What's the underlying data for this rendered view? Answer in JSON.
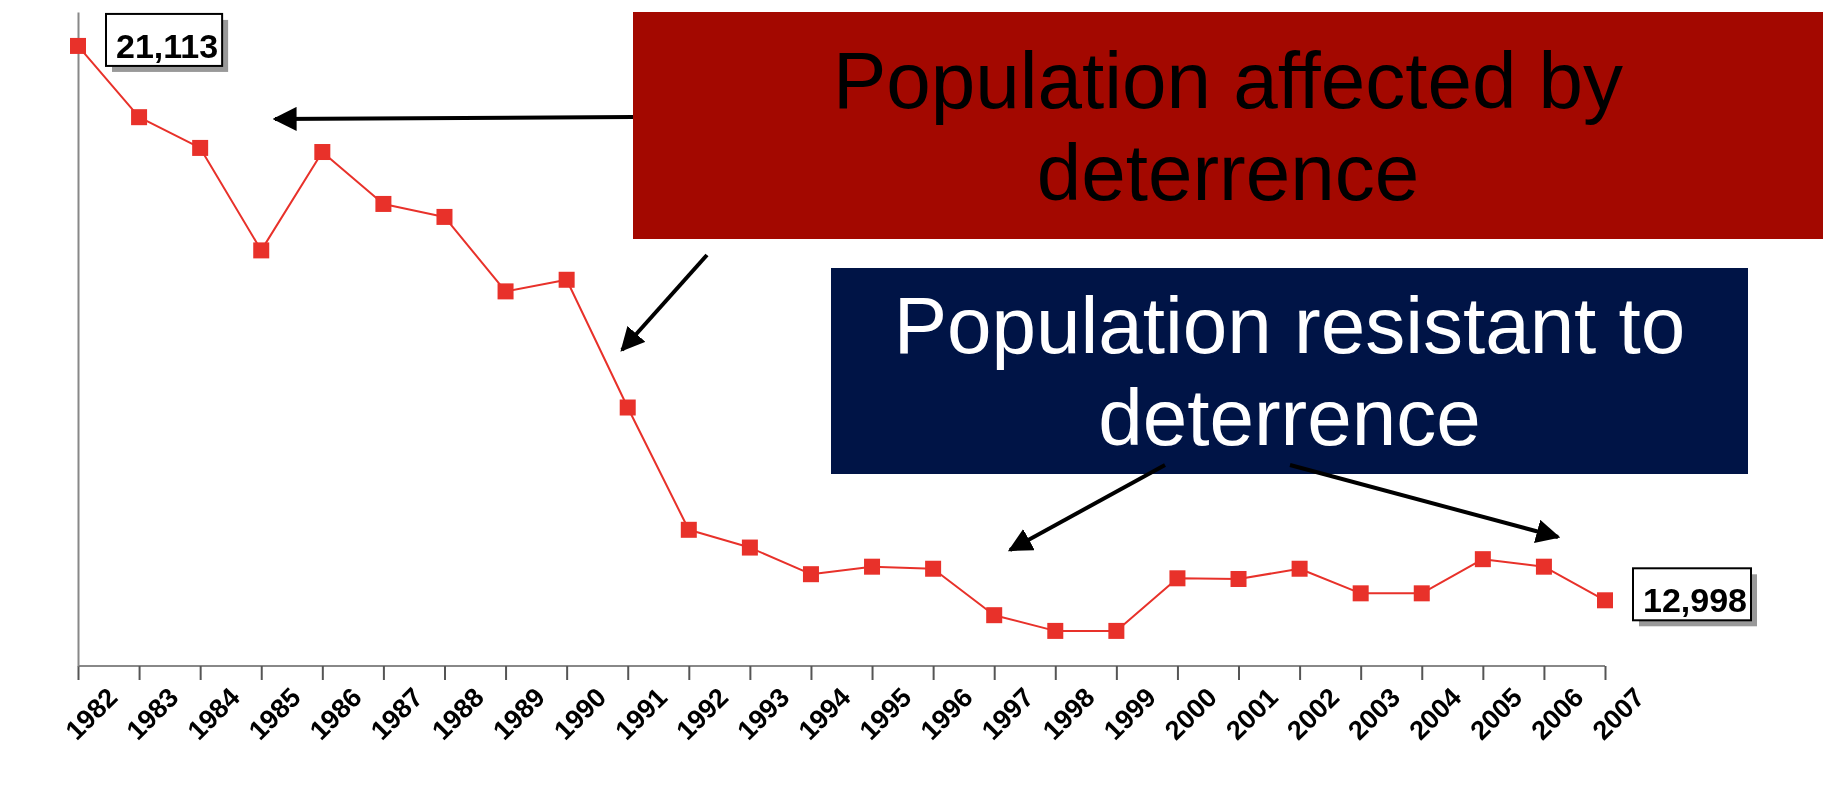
{
  "chart_data": {
    "type": "line",
    "categories": [
      "1982",
      "1983",
      "1984",
      "1985",
      "1986",
      "1987",
      "1988",
      "1989",
      "1990",
      "1991",
      "1992",
      "1993",
      "1994",
      "1995",
      "1996",
      "1997",
      "1998",
      "1999",
      "2000",
      "2001",
      "2002",
      "2003",
      "2004",
      "2005",
      "2006",
      "2007"
    ],
    "series": [
      {
        "color": "#e8312a",
        "values": [
          21113,
          20070,
          19620,
          18120,
          19560,
          18800,
          18610,
          17520,
          17690,
          15820,
          14030,
          13770,
          13380,
          13490,
          13460,
          12780,
          12550,
          12550,
          13320,
          13310,
          13460,
          13100,
          13100,
          13600,
          13490,
          12998
        ],
        "value_labels": [
          "21,113",
          null,
          null,
          null,
          null,
          null,
          null,
          null,
          null,
          null,
          null,
          null,
          null,
          null,
          null,
          null,
          null,
          null,
          null,
          null,
          null,
          null,
          null,
          null,
          null,
          "12,998"
        ]
      }
    ],
    "tick_labels": "x",
    "marker": "square",
    "annotations": [
      "Population affected by deterrence",
      "Population resistant to deterrence"
    ]
  }
}
